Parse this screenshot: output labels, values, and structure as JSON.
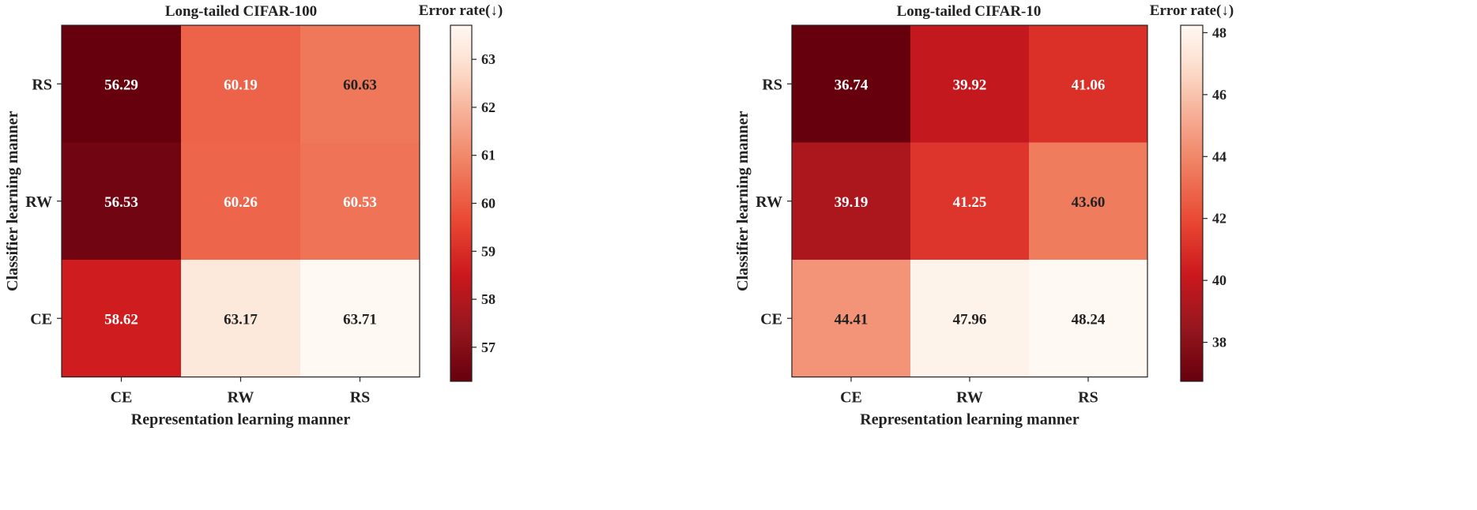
{
  "chart_data": [
    {
      "type": "heatmap",
      "title": "Long-tailed CIFAR-100",
      "xlabel": "Representation learning manner",
      "ylabel": "Classifier learning manner",
      "x_categories": [
        "CE",
        "RW",
        "RS"
      ],
      "y_categories": [
        "RS",
        "RW",
        "CE"
      ],
      "values": [
        [
          56.29,
          60.19,
          60.63
        ],
        [
          56.53,
          60.26,
          60.53
        ],
        [
          58.62,
          63.17,
          63.71
        ]
      ],
      "value_labels": [
        [
          "56.29",
          "60.19",
          "60.63"
        ],
        [
          "56.53",
          "60.26",
          "60.53"
        ],
        [
          "58.62",
          "63.17",
          "63.71"
        ]
      ],
      "colorbar": {
        "label": "Error rate(↓)",
        "range": [
          56.29,
          63.71
        ],
        "ticks": [
          57,
          58,
          59,
          60,
          61,
          62,
          63
        ],
        "colormap": "Reds (reversed)"
      }
    },
    {
      "type": "heatmap",
      "title": "Long-tailed CIFAR-10",
      "xlabel": "Representation learning manner",
      "ylabel": "Classifier learning manner",
      "x_categories": [
        "CE",
        "RW",
        "RS"
      ],
      "y_categories": [
        "RS",
        "RW",
        "CE"
      ],
      "values": [
        [
          36.74,
          39.92,
          41.06
        ],
        [
          39.19,
          41.25,
          43.6
        ],
        [
          44.41,
          47.96,
          48.24
        ]
      ],
      "value_labels": [
        [
          "36.74",
          "39.92",
          "41.06"
        ],
        [
          "39.19",
          "41.25",
          "43.60"
        ],
        [
          "44.41",
          "47.96",
          "48.24"
        ]
      ],
      "colorbar": {
        "label": "Error rate(↓)",
        "range": [
          36.74,
          48.24
        ],
        "ticks": [
          38,
          40,
          42,
          44,
          46,
          48
        ],
        "colormap": "Reds (reversed)"
      }
    }
  ]
}
